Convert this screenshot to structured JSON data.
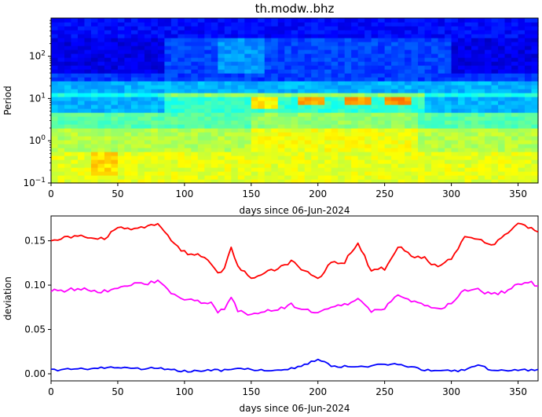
{
  "chart_data": [
    {
      "type": "heatmap",
      "title": "th.modw..bhz",
      "xlabel": "days since 06-Jun-2024",
      "ylabel": "Period",
      "xlim": [
        0,
        365
      ],
      "ylim": [
        0.1,
        800
      ],
      "yscale": "log",
      "xticks": [
        0,
        50,
        100,
        150,
        200,
        250,
        300,
        350
      ],
      "yticks": [
        {
          "value": 0.1,
          "base": "10",
          "exp": "−1"
        },
        {
          "value": 1,
          "base": "10",
          "exp": "0"
        },
        {
          "value": 10,
          "base": "10",
          "exp": "1"
        },
        {
          "value": 100,
          "base": "10",
          "exp": "2"
        }
      ],
      "colormap": "jet",
      "bands": [
        {
          "p_min": 300,
          "p_max": 800,
          "baseline": 0.13
        },
        {
          "p_min": 40,
          "p_max": 300,
          "baseline": 0.1
        },
        {
          "p_min": 25,
          "p_max": 40,
          "baseline": 0.18
        },
        {
          "p_min": 15,
          "p_max": 25,
          "baseline": 0.3
        },
        {
          "p_min": 10,
          "p_max": 15,
          "baseline": 0.4
        },
        {
          "p_min": 5,
          "p_max": 10,
          "baseline": 0.3
        },
        {
          "p_min": 2,
          "p_max": 5,
          "baseline": 0.46
        },
        {
          "p_min": 0.6,
          "p_max": 2,
          "baseline": 0.55
        },
        {
          "p_min": 0.1,
          "p_max": 0.6,
          "baseline": 0.6
        }
      ],
      "hotspots": [
        {
          "x": 160,
          "p_min": 6,
          "p_max": 12,
          "level": 0.64
        },
        {
          "x": 197,
          "p_min": 7,
          "p_max": 11,
          "level": 0.72
        },
        {
          "x": 232,
          "p_min": 7,
          "p_max": 11,
          "level": 0.72
        },
        {
          "x": 260,
          "p_min": 7,
          "p_max": 11,
          "level": 0.74
        },
        {
          "x": 40,
          "p_min": 0.15,
          "p_max": 0.5,
          "level": 0.66
        }
      ]
    },
    {
      "type": "line",
      "xlabel": "days since 06-Jun-2024",
      "ylabel": "deviation",
      "xlim": [
        0,
        365
      ],
      "ylim": [
        -0.008,
        0.178
      ],
      "xticks": [
        0,
        50,
        100,
        150,
        200,
        250,
        300,
        350
      ],
      "yticks": [
        {
          "value": 0,
          "label": "0.00"
        },
        {
          "value": 0.05,
          "label": "0.05"
        },
        {
          "value": 0.1,
          "label": "0.10"
        },
        {
          "value": 0.15,
          "label": "0.15"
        }
      ],
      "series": [
        {
          "color": "#ff0000",
          "x": [
            0,
            10,
            20,
            30,
            40,
            50,
            60,
            70,
            80,
            90,
            100,
            110,
            120,
            125,
            130,
            135,
            140,
            150,
            160,
            170,
            180,
            190,
            200,
            210,
            220,
            230,
            240,
            250,
            260,
            270,
            280,
            290,
            300,
            310,
            320,
            330,
            340,
            350,
            360,
            365
          ],
          "y": [
            0.152,
            0.153,
            0.157,
            0.153,
            0.152,
            0.165,
            0.162,
            0.166,
            0.17,
            0.15,
            0.137,
            0.134,
            0.125,
            0.112,
            0.118,
            0.143,
            0.12,
            0.108,
            0.113,
            0.119,
            0.127,
            0.116,
            0.107,
            0.126,
            0.126,
            0.148,
            0.116,
            0.119,
            0.144,
            0.133,
            0.13,
            0.12,
            0.13,
            0.155,
            0.153,
            0.145,
            0.155,
            0.168,
            0.165,
            0.16
          ]
        },
        {
          "color": "#ff00ff",
          "x": [
            0,
            10,
            20,
            30,
            40,
            50,
            60,
            70,
            80,
            90,
            100,
            110,
            120,
            125,
            130,
            135,
            140,
            150,
            160,
            170,
            180,
            190,
            200,
            210,
            220,
            230,
            240,
            250,
            260,
            270,
            280,
            290,
            300,
            310,
            320,
            330,
            340,
            350,
            360,
            365
          ],
          "y": [
            0.094,
            0.094,
            0.096,
            0.094,
            0.093,
            0.098,
            0.101,
            0.101,
            0.104,
            0.091,
            0.083,
            0.082,
            0.079,
            0.07,
            0.072,
            0.088,
            0.072,
            0.067,
            0.07,
            0.072,
            0.078,
            0.073,
            0.067,
            0.076,
            0.078,
            0.083,
            0.071,
            0.075,
            0.088,
            0.082,
            0.078,
            0.072,
            0.08,
            0.095,
            0.095,
            0.089,
            0.093,
            0.101,
            0.103,
            0.099
          ]
        },
        {
          "color": "#0000ff",
          "x": [
            0,
            10,
            20,
            30,
            40,
            50,
            60,
            70,
            80,
            90,
            100,
            110,
            120,
            130,
            140,
            150,
            160,
            170,
            180,
            190,
            200,
            210,
            220,
            230,
            240,
            250,
            260,
            270,
            280,
            290,
            300,
            310,
            320,
            330,
            340,
            350,
            360,
            365
          ],
          "y": [
            0.004,
            0.005,
            0.006,
            0.005,
            0.007,
            0.007,
            0.006,
            0.006,
            0.006,
            0.005,
            0.003,
            0.003,
            0.004,
            0.004,
            0.005,
            0.005,
            0.004,
            0.005,
            0.006,
            0.01,
            0.016,
            0.009,
            0.008,
            0.009,
            0.008,
            0.011,
            0.01,
            0.008,
            0.004,
            0.003,
            0.003,
            0.004,
            0.011,
            0.004,
            0.003,
            0.004,
            0.004,
            0.005
          ]
        }
      ]
    }
  ]
}
